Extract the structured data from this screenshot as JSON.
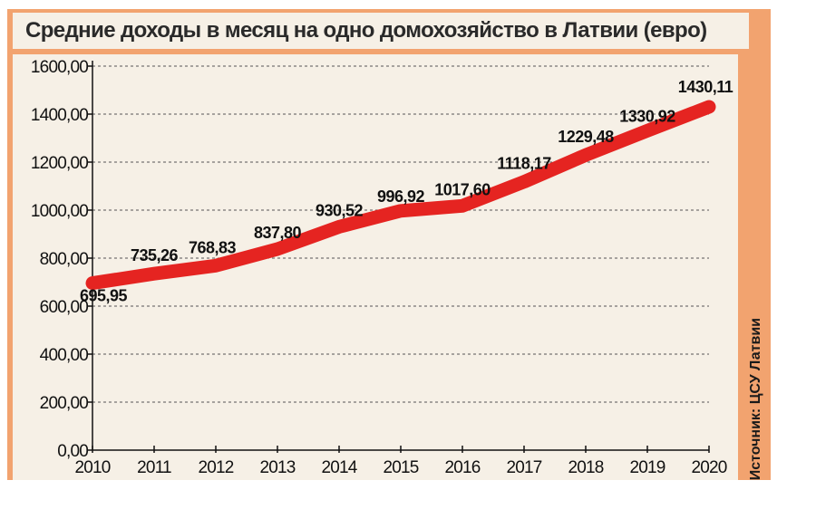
{
  "title": "Средние доходы в месяц на одно домохозяйство в Латвии (евро)",
  "source": "Источник: ЦСУ Латвии",
  "colors": {
    "line": "#e52421",
    "frame": "#f2a36f",
    "panel": "#f6f0e6",
    "grid": "#555555"
  },
  "chart_data": {
    "type": "line",
    "title": "Средние доходы в месяц на одно домохозяйство в Латвии (евро)",
    "xlabel": "",
    "ylabel": "",
    "x": [
      "2010",
      "2011",
      "2012",
      "2013",
      "2014",
      "2015",
      "2016",
      "2017",
      "2018",
      "2019",
      "2020"
    ],
    "x_ticks": [
      "2010",
      "2011",
      "2012",
      "2013",
      "2014",
      "2015",
      "2016",
      "2017",
      "2018",
      "2019",
      "2020"
    ],
    "ylim": [
      0,
      1600
    ],
    "y_ticks": [
      0,
      200,
      400,
      600,
      800,
      1000,
      1200,
      1400,
      1600
    ],
    "y_tick_labels": [
      "0,00",
      "200,00",
      "400,00",
      "600,00",
      "800,00",
      "1000,00",
      "1200,00",
      "1400,00",
      "1600,00"
    ],
    "grid": "horizontal dashed",
    "series": [
      {
        "values": [
          695.95,
          735.26,
          768.83,
          837.8,
          930.52,
          996.92,
          1017.6,
          1118.17,
          1229.48,
          1330.92,
          1430.11
        ],
        "labels": [
          "695,95",
          "735,26",
          "768,83",
          "837,80",
          "930,52",
          "996,92",
          "1017,60",
          "1118,17",
          "1229,48",
          "1330,92",
          "1430,11"
        ]
      }
    ]
  }
}
